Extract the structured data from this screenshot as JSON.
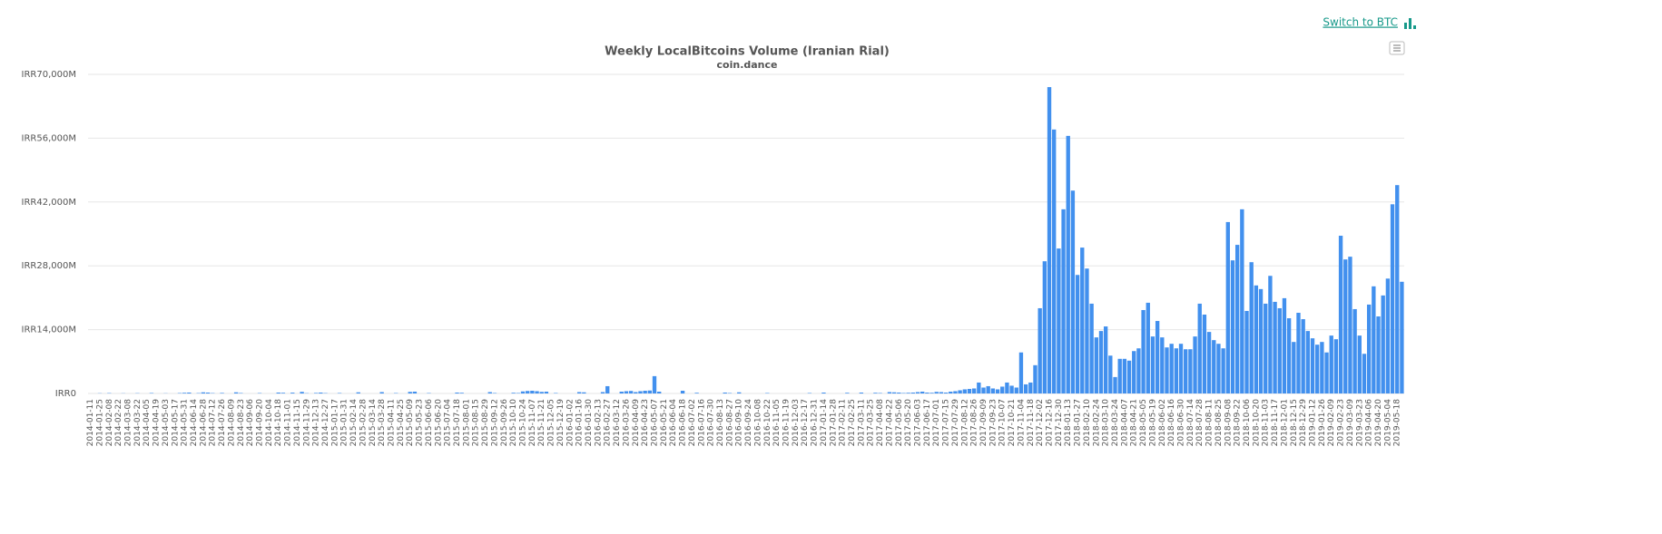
{
  "toolbar": {
    "switch_label": "Switch to BTC"
  },
  "chart_data": {
    "type": "bar",
    "title": "Weekly LocalBitcoins Volume (Iranian Rial)",
    "subtitle": "coin.dance",
    "color": "#4290ee",
    "grid": true,
    "ylim": [
      0,
      70000
    ],
    "yticks": [
      {
        "value": 0,
        "label": "IRR0"
      },
      {
        "value": 14000,
        "label": "IRR14,000M"
      },
      {
        "value": 28000,
        "label": "IRR28,000M"
      },
      {
        "value": 42000,
        "label": "IRR42,000M"
      },
      {
        "value": 56000,
        "label": "IRR56,000M"
      },
      {
        "value": 70000,
        "label": "IRR70,000M"
      }
    ],
    "categories": [
      "2014-01-11",
      null,
      "2014-01-25",
      null,
      "2014-02-08",
      null,
      "2014-02-22",
      null,
      "2014-03-08",
      null,
      "2014-03-22",
      null,
      "2014-04-05",
      null,
      "2014-04-19",
      null,
      "2014-05-03",
      null,
      "2014-05-17",
      null,
      "2014-05-31",
      null,
      "2014-06-14",
      null,
      "2014-06-28",
      null,
      "2014-07-12",
      null,
      "2014-07-26",
      null,
      "2014-08-09",
      null,
      "2014-08-23",
      null,
      "2014-09-06",
      null,
      "2014-09-20",
      null,
      "2014-10-04",
      null,
      "2014-10-18",
      null,
      "2014-11-01",
      null,
      "2014-11-15",
      null,
      "2014-11-29",
      null,
      "2014-12-13",
      null,
      "2014-12-27",
      null,
      "2015-01-17",
      null,
      "2015-01-31",
      null,
      "2015-02-14",
      null,
      "2015-02-28",
      null,
      "2015-03-14",
      null,
      "2015-03-28",
      null,
      "2015-04-11",
      null,
      "2015-04-25",
      null,
      "2015-05-09",
      null,
      "2015-05-23",
      null,
      "2015-06-06",
      null,
      "2015-06-20",
      null,
      "2015-07-04",
      null,
      "2015-07-18",
      null,
      "2015-08-01",
      null,
      "2015-08-15",
      null,
      "2015-08-29",
      null,
      "2015-09-12",
      null,
      "2015-09-26",
      null,
      "2015-10-10",
      null,
      "2015-10-24",
      null,
      "2015-11-07",
      null,
      "2015-11-21",
      null,
      "2015-12-05",
      null,
      "2015-12-19",
      null,
      "2016-01-02",
      null,
      "2016-01-16",
      null,
      "2016-01-30",
      null,
      "2016-02-13",
      null,
      "2016-02-27",
      null,
      "2016-03-12",
      null,
      "2016-03-26",
      null,
      "2016-04-09",
      null,
      "2016-04-23",
      null,
      "2016-05-07",
      null,
      "2016-05-21",
      null,
      "2016-06-04",
      null,
      "2016-06-18",
      null,
      "2016-07-02",
      null,
      "2016-07-16",
      null,
      "2016-07-30",
      null,
      "2016-08-13",
      null,
      "2016-08-27",
      null,
      "2016-09-10",
      null,
      "2016-09-24",
      null,
      "2016-10-08",
      null,
      "2016-10-22",
      null,
      "2016-11-05",
      null,
      "2016-11-19",
      null,
      "2016-12-03",
      null,
      "2016-12-17",
      null,
      "2016-12-31",
      null,
      "2017-01-14",
      null,
      "2017-01-28",
      null,
      "2017-02-11",
      null,
      "2017-02-25",
      null,
      "2017-03-11",
      null,
      "2017-03-25",
      null,
      "2017-04-08",
      null,
      "2017-04-22",
      null,
      "2017-05-06",
      null,
      "2017-05-20",
      null,
      "2017-06-03",
      null,
      "2017-06-17",
      null,
      "2017-07-01",
      null,
      "2017-07-15",
      null,
      "2017-07-29",
      null,
      "2017-08-12",
      null,
      "2017-08-26",
      null,
      "2017-09-09",
      null,
      "2017-09-23",
      null,
      "2017-10-07",
      null,
      "2017-10-21",
      null,
      "2017-11-04",
      null,
      "2017-11-18",
      null,
      "2017-12-02",
      null,
      "2017-12-16",
      null,
      "2017-12-30",
      null,
      "2018-01-13",
      null,
      "2018-01-27",
      null,
      "2018-02-10",
      null,
      "2018-02-24",
      null,
      "2018-03-10",
      null,
      "2018-03-24",
      null,
      "2018-04-07",
      null,
      "2018-04-21",
      null,
      "2018-05-05",
      null,
      "2018-05-19",
      null,
      "2018-06-02",
      null,
      "2018-06-16",
      null,
      "2018-06-30",
      null,
      "2018-07-14",
      null,
      "2018-07-28",
      null,
      "2018-08-11",
      null,
      "2018-08-25",
      null,
      "2018-09-08",
      null,
      "2018-09-22",
      null,
      "2018-10-06",
      null,
      "2018-10-20",
      null,
      "2018-11-03",
      null,
      "2018-11-17",
      null,
      "2018-12-01",
      null,
      "2018-12-15",
      null,
      "2018-12-29",
      null,
      "2019-01-12",
      null,
      "2019-01-26",
      null,
      "2019-02-09",
      null,
      "2019-02-23",
      null,
      "2019-03-09",
      null,
      "2019-03-23",
      null,
      "2019-04-06",
      null,
      "2019-04-20",
      null,
      "2019-05-04",
      null,
      "2019-05-18",
      null
    ],
    "values": [
      0,
      0,
      50,
      0,
      80,
      0,
      0,
      40,
      0,
      0,
      60,
      0,
      0,
      100,
      0,
      0,
      40,
      0,
      0,
      90,
      150,
      200,
      0,
      80,
      250,
      200,
      80,
      0,
      120,
      0,
      0,
      250,
      100,
      0,
      0,
      0,
      90,
      0,
      0,
      0,
      200,
      150,
      0,
      180,
      0,
      350,
      60,
      0,
      120,
      200,
      80,
      0,
      0,
      100,
      0,
      0,
      0,
      250,
      0,
      0,
      0,
      0,
      300,
      0,
      0,
      90,
      0,
      0,
      350,
      400,
      0,
      0,
      90,
      0,
      0,
      0,
      0,
      0,
      200,
      150,
      0,
      0,
      0,
      0,
      0,
      300,
      100,
      0,
      0,
      0,
      150,
      100,
      450,
      550,
      600,
      500,
      350,
      400,
      0,
      100,
      0,
      0,
      0,
      0,
      300,
      250,
      0,
      0,
      0,
      300,
      1600,
      0,
      0,
      400,
      500,
      550,
      300,
      500,
      600,
      650,
      3800,
      400,
      0,
      0,
      0,
      0,
      600,
      0,
      0,
      150,
      0,
      0,
      0,
      0,
      0,
      200,
      100,
      0,
      250,
      0,
      0,
      0,
      0,
      0,
      100,
      0,
      0,
      0,
      0,
      0,
      0,
      0,
      0,
      100,
      0,
      0,
      200,
      0,
      0,
      0,
      0,
      150,
      0,
      0,
      200,
      0,
      0,
      150,
      100,
      0,
      300,
      250,
      200,
      100,
      150,
      200,
      300,
      400,
      200,
      150,
      350,
      300,
      200,
      400,
      500,
      700,
      900,
      1000,
      1100,
      2400,
      1300,
      1600,
      1100,
      900,
      1500,
      2400,
      1700,
      1300,
      9000,
      2000,
      2400,
      6200,
      18700,
      29000,
      67200,
      57900,
      31800,
      40400,
      56500,
      44500,
      26000,
      32000,
      27400,
      19700,
      12300,
      13700,
      14700,
      8300,
      3600,
      7600,
      7600,
      7200,
      9300,
      9900,
      18300,
      19900,
      12500,
      15900,
      12300,
      10100,
      10900,
      9900,
      10900,
      9700,
      9700,
      12500,
      19700,
      17300,
      13500,
      11700,
      10900,
      9900,
      37600,
      29200,
      32600,
      40400,
      18100,
      28800,
      23700,
      22900,
      19700,
      25800,
      20100,
      18700,
      20900,
      16500,
      11300,
      17700,
      16300,
      13700,
      12100,
      10700,
      11300,
      9000,
      12700,
      11900,
      34600,
      29400,
      30000,
      18500,
      12700,
      8700,
      19500,
      23500,
      16900,
      21500,
      25200,
      41500,
      45700,
      24500
    ]
  }
}
